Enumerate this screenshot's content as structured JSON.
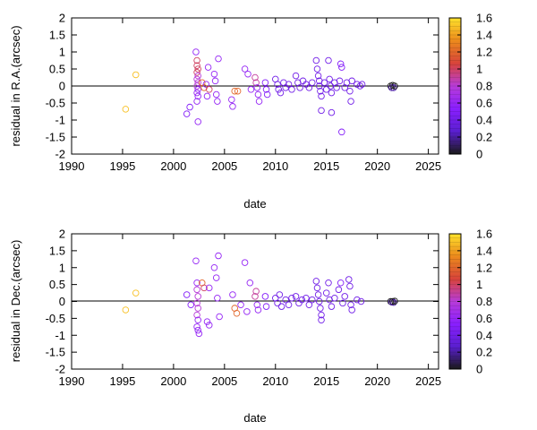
{
  "chart_data": [
    {
      "type": "scatter",
      "title": "",
      "xlabel": "date",
      "ylabel": "residual in R.A.(arcsec)",
      "xlim": [
        1990,
        2026
      ],
      "ylim": [
        -2,
        2
      ],
      "xticks": [
        1990,
        1995,
        2000,
        2005,
        2010,
        2015,
        2020,
        2025
      ],
      "yticks": [
        -2,
        -1.5,
        -1,
        -0.5,
        0,
        0.5,
        1,
        1.5,
        2
      ],
      "zero_line": true,
      "grid": false,
      "colorbar": {
        "range": [
          0,
          1.6
        ],
        "ticks": [
          0,
          0.2,
          0.4,
          0.6,
          0.8,
          1,
          1.2,
          1.4,
          1.6
        ],
        "palette": [
          "#1a1a1a",
          "#5a1fd0",
          "#8a1fff",
          "#b83cd8",
          "#d8443a",
          "#ec8a1c",
          "#ffe22c"
        ]
      },
      "points": [
        {
          "x": 1995.3,
          "y": -0.68,
          "c": 1.5
        },
        {
          "x": 1996.3,
          "y": 0.33,
          "c": 1.5
        },
        {
          "x": 2001.3,
          "y": -0.82,
          "c": 0.5
        },
        {
          "x": 2001.6,
          "y": -0.62,
          "c": 0.5
        },
        {
          "x": 2002.2,
          "y": 1.0,
          "c": 0.6
        },
        {
          "x": 2002.3,
          "y": 0.75,
          "c": 1.0
        },
        {
          "x": 2002.3,
          "y": 0.6,
          "c": 1.0
        },
        {
          "x": 2002.4,
          "y": 0.5,
          "c": 1.0
        },
        {
          "x": 2002.3,
          "y": 0.4,
          "c": 1.0
        },
        {
          "x": 2002.4,
          "y": 0.3,
          "c": 0.8
        },
        {
          "x": 2002.3,
          "y": 0.2,
          "c": 0.8
        },
        {
          "x": 2002.4,
          "y": 0.1,
          "c": 0.8
        },
        {
          "x": 2002.3,
          "y": 0.0,
          "c": 0.8
        },
        {
          "x": 2002.4,
          "y": -0.1,
          "c": 0.6
        },
        {
          "x": 2002.3,
          "y": -0.2,
          "c": 0.6
        },
        {
          "x": 2002.4,
          "y": -0.3,
          "c": 0.6
        },
        {
          "x": 2002.3,
          "y": -0.45,
          "c": 0.6
        },
        {
          "x": 2002.4,
          "y": -1.05,
          "c": 0.6
        },
        {
          "x": 2002.8,
          "y": 0.1,
          "c": 1.2
        },
        {
          "x": 2003.0,
          "y": -0.05,
          "c": 1.2
        },
        {
          "x": 2003.2,
          "y": 0.05,
          "c": 0.6
        },
        {
          "x": 2003.3,
          "y": -0.3,
          "c": 0.6
        },
        {
          "x": 2003.4,
          "y": 0.55,
          "c": 0.6
        },
        {
          "x": 2003.5,
          "y": -0.1,
          "c": 1.0
        },
        {
          "x": 2004.0,
          "y": 0.35,
          "c": 0.6
        },
        {
          "x": 2004.1,
          "y": 0.15,
          "c": 0.6
        },
        {
          "x": 2004.2,
          "y": -0.25,
          "c": 0.6
        },
        {
          "x": 2004.3,
          "y": -0.45,
          "c": 0.6
        },
        {
          "x": 2004.4,
          "y": 0.8,
          "c": 0.6
        },
        {
          "x": 2005.7,
          "y": -0.4,
          "c": 0.6
        },
        {
          "x": 2005.8,
          "y": -0.6,
          "c": 0.6
        },
        {
          "x": 2006.0,
          "y": -0.15,
          "c": 1.2
        },
        {
          "x": 2006.3,
          "y": -0.15,
          "c": 1.2
        },
        {
          "x": 2007.0,
          "y": 0.5,
          "c": 0.6
        },
        {
          "x": 2007.3,
          "y": 0.35,
          "c": 0.6
        },
        {
          "x": 2007.6,
          "y": -0.1,
          "c": 0.6
        },
        {
          "x": 2008.0,
          "y": 0.25,
          "c": 0.9
        },
        {
          "x": 2008.1,
          "y": 0.1,
          "c": 0.9
        },
        {
          "x": 2008.2,
          "y": -0.05,
          "c": 0.6
        },
        {
          "x": 2008.3,
          "y": -0.25,
          "c": 0.6
        },
        {
          "x": 2008.4,
          "y": -0.45,
          "c": 0.6
        },
        {
          "x": 2009.0,
          "y": 0.1,
          "c": 0.5
        },
        {
          "x": 2009.1,
          "y": -0.1,
          "c": 0.5
        },
        {
          "x": 2009.2,
          "y": -0.25,
          "c": 0.5
        },
        {
          "x": 2010.0,
          "y": 0.2,
          "c": 0.4
        },
        {
          "x": 2010.2,
          "y": 0.05,
          "c": 0.4
        },
        {
          "x": 2010.3,
          "y": -0.1,
          "c": 0.4
        },
        {
          "x": 2010.5,
          "y": -0.2,
          "c": 0.4
        },
        {
          "x": 2010.8,
          "y": 0.1,
          "c": 0.4
        },
        {
          "x": 2011.0,
          "y": -0.05,
          "c": 0.4
        },
        {
          "x": 2011.3,
          "y": 0.05,
          "c": 0.4
        },
        {
          "x": 2011.6,
          "y": -0.1,
          "c": 0.4
        },
        {
          "x": 2012.0,
          "y": 0.3,
          "c": 0.4
        },
        {
          "x": 2012.2,
          "y": 0.1,
          "c": 0.4
        },
        {
          "x": 2012.4,
          "y": -0.05,
          "c": 0.4
        },
        {
          "x": 2012.7,
          "y": 0.15,
          "c": 0.4
        },
        {
          "x": 2013.0,
          "y": 0.05,
          "c": 0.4
        },
        {
          "x": 2013.3,
          "y": -0.05,
          "c": 0.4
        },
        {
          "x": 2013.6,
          "y": 0.1,
          "c": 0.4
        },
        {
          "x": 2014.0,
          "y": 0.75,
          "c": 0.4
        },
        {
          "x": 2014.1,
          "y": 0.5,
          "c": 0.4
        },
        {
          "x": 2014.2,
          "y": 0.3,
          "c": 0.4
        },
        {
          "x": 2014.3,
          "y": 0.15,
          "c": 0.4
        },
        {
          "x": 2014.3,
          "y": 0.0,
          "c": 0.4
        },
        {
          "x": 2014.4,
          "y": -0.15,
          "c": 0.4
        },
        {
          "x": 2014.5,
          "y": -0.3,
          "c": 0.4
        },
        {
          "x": 2014.5,
          "y": -0.72,
          "c": 0.4
        },
        {
          "x": 2014.8,
          "y": 0.1,
          "c": 0.4
        },
        {
          "x": 2015.0,
          "y": -0.1,
          "c": 0.4
        },
        {
          "x": 2015.2,
          "y": 0.75,
          "c": 0.4
        },
        {
          "x": 2015.3,
          "y": 0.2,
          "c": 0.4
        },
        {
          "x": 2015.4,
          "y": 0.0,
          "c": 0.4
        },
        {
          "x": 2015.5,
          "y": -0.2,
          "c": 0.4
        },
        {
          "x": 2015.5,
          "y": -0.78,
          "c": 0.4
        },
        {
          "x": 2015.8,
          "y": 0.1,
          "c": 0.4
        },
        {
          "x": 2016.0,
          "y": -0.05,
          "c": 0.4
        },
        {
          "x": 2016.3,
          "y": 0.15,
          "c": 0.4
        },
        {
          "x": 2016.4,
          "y": 0.65,
          "c": 0.5
        },
        {
          "x": 2016.5,
          "y": 0.55,
          "c": 0.5
        },
        {
          "x": 2016.5,
          "y": -1.35,
          "c": 0.5
        },
        {
          "x": 2016.8,
          "y": -0.05,
          "c": 0.4
        },
        {
          "x": 2017.0,
          "y": 0.1,
          "c": 0.4
        },
        {
          "x": 2017.3,
          "y": -0.15,
          "c": 0.4
        },
        {
          "x": 2017.4,
          "y": -0.45,
          "c": 0.4
        },
        {
          "x": 2017.5,
          "y": 0.15,
          "c": 0.4
        },
        {
          "x": 2018.0,
          "y": 0.05,
          "c": 0.4
        },
        {
          "x": 2018.3,
          "y": 0.0,
          "c": 0.4
        },
        {
          "x": 2018.5,
          "y": 0.05,
          "c": 0.4
        },
        {
          "x": 2021.3,
          "y": 0.0,
          "c": 0.0
        },
        {
          "x": 2021.4,
          "y": -0.05,
          "c": 0.2
        },
        {
          "x": 2021.5,
          "y": 0.02,
          "c": 0.0
        },
        {
          "x": 2021.6,
          "y": -0.05,
          "c": 0.2
        },
        {
          "x": 2021.7,
          "y": 0.0,
          "c": 0.0
        }
      ]
    },
    {
      "type": "scatter",
      "title": "",
      "xlabel": "date",
      "ylabel": "residual in Dec.(arcsec)",
      "xlim": [
        1990,
        2026
      ],
      "ylim": [
        -2,
        2
      ],
      "xticks": [
        1990,
        1995,
        2000,
        2005,
        2010,
        2015,
        2020,
        2025
      ],
      "yticks": [
        -2,
        -1.5,
        -1,
        -0.5,
        0,
        0.5,
        1,
        1.5,
        2
      ],
      "zero_line": true,
      "grid": false,
      "colorbar": {
        "range": [
          0,
          1.6
        ],
        "ticks": [
          0,
          0.2,
          0.4,
          0.6,
          0.8,
          1,
          1.2,
          1.4,
          1.6
        ],
        "palette": [
          "#1a1a1a",
          "#5a1fd0",
          "#8a1fff",
          "#b83cd8",
          "#d8443a",
          "#ec8a1c",
          "#ffe22c"
        ]
      },
      "points": [
        {
          "x": 1995.3,
          "y": -0.25,
          "c": 1.5
        },
        {
          "x": 1996.3,
          "y": 0.25,
          "c": 1.5
        },
        {
          "x": 2001.3,
          "y": 0.2,
          "c": 0.5
        },
        {
          "x": 2001.7,
          "y": -0.1,
          "c": 0.5
        },
        {
          "x": 2002.2,
          "y": 1.2,
          "c": 0.6
        },
        {
          "x": 2002.3,
          "y": 0.55,
          "c": 0.6
        },
        {
          "x": 2002.3,
          "y": 0.35,
          "c": 0.8
        },
        {
          "x": 2002.4,
          "y": 0.15,
          "c": 0.8
        },
        {
          "x": 2002.3,
          "y": -0.05,
          "c": 0.8
        },
        {
          "x": 2002.4,
          "y": -0.2,
          "c": 0.8
        },
        {
          "x": 2002.3,
          "y": -0.4,
          "c": 0.8
        },
        {
          "x": 2002.4,
          "y": -0.55,
          "c": 0.6
        },
        {
          "x": 2002.3,
          "y": -0.75,
          "c": 0.6
        },
        {
          "x": 2002.4,
          "y": -0.85,
          "c": 0.6
        },
        {
          "x": 2002.5,
          "y": -0.95,
          "c": 0.6
        },
        {
          "x": 2002.8,
          "y": 0.55,
          "c": 1.2
        },
        {
          "x": 2003.0,
          "y": 0.4,
          "c": 1.0
        },
        {
          "x": 2003.3,
          "y": -0.6,
          "c": 0.6
        },
        {
          "x": 2003.5,
          "y": 0.4,
          "c": 0.6
        },
        {
          "x": 2003.5,
          "y": -0.7,
          "c": 0.6
        },
        {
          "x": 2004.0,
          "y": 1.0,
          "c": 0.6
        },
        {
          "x": 2004.2,
          "y": 0.7,
          "c": 0.6
        },
        {
          "x": 2004.3,
          "y": 0.1,
          "c": 0.6
        },
        {
          "x": 2004.4,
          "y": 1.35,
          "c": 0.6
        },
        {
          "x": 2004.5,
          "y": -0.45,
          "c": 0.6
        },
        {
          "x": 2005.8,
          "y": 0.2,
          "c": 0.6
        },
        {
          "x": 2006.0,
          "y": -0.2,
          "c": 1.2
        },
        {
          "x": 2006.2,
          "y": -0.35,
          "c": 1.2
        },
        {
          "x": 2006.6,
          "y": -0.1,
          "c": 0.6
        },
        {
          "x": 2007.0,
          "y": 1.15,
          "c": 0.6
        },
        {
          "x": 2007.2,
          "y": -0.3,
          "c": 0.6
        },
        {
          "x": 2007.5,
          "y": 0.55,
          "c": 0.6
        },
        {
          "x": 2008.0,
          "y": 0.15,
          "c": 0.9
        },
        {
          "x": 2008.1,
          "y": 0.3,
          "c": 0.9
        },
        {
          "x": 2008.2,
          "y": -0.1,
          "c": 0.6
        },
        {
          "x": 2008.3,
          "y": -0.25,
          "c": 0.6
        },
        {
          "x": 2009.0,
          "y": 0.15,
          "c": 0.5
        },
        {
          "x": 2009.1,
          "y": -0.15,
          "c": 0.5
        },
        {
          "x": 2010.0,
          "y": 0.1,
          "c": 0.4
        },
        {
          "x": 2010.2,
          "y": -0.05,
          "c": 0.4
        },
        {
          "x": 2010.4,
          "y": 0.2,
          "c": 0.4
        },
        {
          "x": 2010.6,
          "y": -0.15,
          "c": 0.4
        },
        {
          "x": 2011.0,
          "y": 0.05,
          "c": 0.4
        },
        {
          "x": 2011.3,
          "y": -0.1,
          "c": 0.4
        },
        {
          "x": 2011.6,
          "y": 0.1,
          "c": 0.4
        },
        {
          "x": 2012.0,
          "y": 0.15,
          "c": 0.4
        },
        {
          "x": 2012.3,
          "y": -0.05,
          "c": 0.4
        },
        {
          "x": 2012.6,
          "y": 0.05,
          "c": 0.4
        },
        {
          "x": 2013.0,
          "y": 0.1,
          "c": 0.4
        },
        {
          "x": 2013.3,
          "y": -0.1,
          "c": 0.4
        },
        {
          "x": 2013.6,
          "y": 0.05,
          "c": 0.4
        },
        {
          "x": 2014.0,
          "y": 0.6,
          "c": 0.4
        },
        {
          "x": 2014.1,
          "y": 0.4,
          "c": 0.4
        },
        {
          "x": 2014.2,
          "y": 0.2,
          "c": 0.4
        },
        {
          "x": 2014.3,
          "y": 0.0,
          "c": 0.4
        },
        {
          "x": 2014.4,
          "y": -0.2,
          "c": 0.4
        },
        {
          "x": 2014.5,
          "y": -0.4,
          "c": 0.4
        },
        {
          "x": 2014.5,
          "y": -0.55,
          "c": 0.4
        },
        {
          "x": 2015.0,
          "y": 0.25,
          "c": 0.4
        },
        {
          "x": 2015.2,
          "y": 0.55,
          "c": 0.4
        },
        {
          "x": 2015.3,
          "y": 0.05,
          "c": 0.4
        },
        {
          "x": 2015.5,
          "y": -0.15,
          "c": 0.4
        },
        {
          "x": 2015.8,
          "y": 0.1,
          "c": 0.4
        },
        {
          "x": 2016.2,
          "y": 0.35,
          "c": 0.4
        },
        {
          "x": 2016.4,
          "y": 0.55,
          "c": 0.5
        },
        {
          "x": 2016.6,
          "y": -0.05,
          "c": 0.4
        },
        {
          "x": 2016.8,
          "y": 0.15,
          "c": 0.4
        },
        {
          "x": 2017.2,
          "y": 0.65,
          "c": 0.4
        },
        {
          "x": 2017.3,
          "y": 0.45,
          "c": 0.4
        },
        {
          "x": 2017.4,
          "y": -0.1,
          "c": 0.4
        },
        {
          "x": 2017.5,
          "y": -0.25,
          "c": 0.4
        },
        {
          "x": 2018.0,
          "y": 0.05,
          "c": 0.4
        },
        {
          "x": 2018.4,
          "y": 0.0,
          "c": 0.4
        },
        {
          "x": 2021.3,
          "y": 0.0,
          "c": 0.0
        },
        {
          "x": 2021.4,
          "y": -0.02,
          "c": 0.2
        },
        {
          "x": 2021.5,
          "y": 0.0,
          "c": 0.0
        },
        {
          "x": 2021.6,
          "y": -0.03,
          "c": 0.2
        },
        {
          "x": 2021.7,
          "y": 0.01,
          "c": 0.0
        }
      ]
    }
  ]
}
